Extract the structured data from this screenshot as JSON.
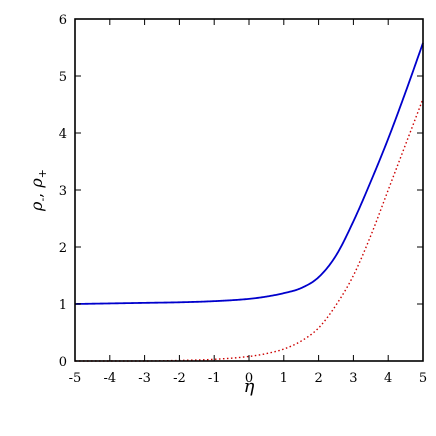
{
  "chart_data": {
    "type": "line",
    "title": "",
    "xlabel": "η",
    "ylabel": "ρ-, ρ+",
    "ylabel_parts": {
      "rho": "ρ",
      "minus": "-",
      "sep": ", ",
      "plus": "+"
    },
    "xlim": [
      -5,
      5
    ],
    "ylim": [
      0,
      6
    ],
    "xticks": [
      -5,
      -4,
      -3,
      -2,
      -1,
      0,
      1,
      2,
      3,
      4,
      5
    ],
    "yticks": [
      0,
      1,
      2,
      3,
      4,
      5,
      6
    ],
    "grid": false,
    "legend": "none",
    "series": [
      {
        "style": "solid",
        "color": "#0000cc",
        "x": [
          -5,
          -4,
          -3,
          -2,
          -1,
          0,
          0.5,
          1,
          1.5,
          2,
          2.5,
          3,
          3.5,
          4,
          4.5,
          5
        ],
        "y": [
          1.0,
          1.01,
          1.02,
          1.03,
          1.05,
          1.09,
          1.13,
          1.19,
          1.28,
          1.47,
          1.85,
          2.45,
          3.15,
          3.9,
          4.72,
          5.58
        ]
      },
      {
        "style": "dotted",
        "color": "#cc0000",
        "x": [
          -5,
          -4,
          -3,
          -2,
          -1,
          0,
          0.5,
          1,
          1.5,
          2,
          2.5,
          3,
          3.5,
          4,
          4.5,
          5
        ],
        "y": [
          0.0,
          0.0,
          0.0,
          0.01,
          0.03,
          0.08,
          0.13,
          0.21,
          0.35,
          0.58,
          0.98,
          1.5,
          2.2,
          3.0,
          3.8,
          4.6
        ]
      }
    ]
  }
}
